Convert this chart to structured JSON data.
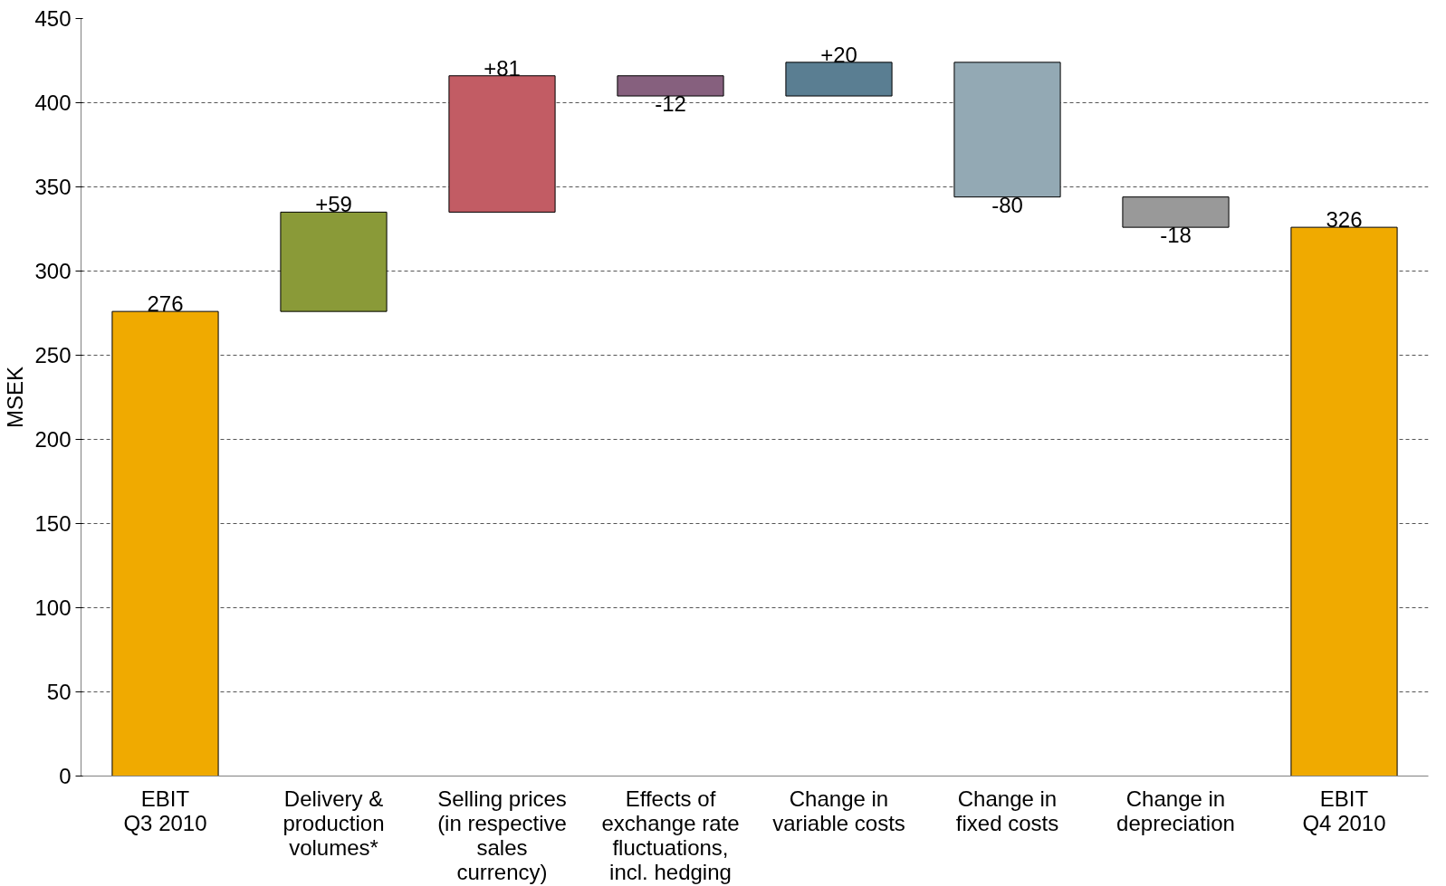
{
  "chart_data": {
    "type": "bar",
    "ylabel": "MSEK",
    "categories": [
      "EBIT\nQ3 2010",
      "Delivery &\nproduction\nvolumes*",
      "Selling prices\n(in respective\nsales\ncurrency)",
      "Effects of\nexchange rate\nfluctuations,\nincl. hedging",
      "Change in\nvariable costs",
      "Change in\nfixed costs",
      "Change in\ndepreciation",
      "EBIT\nQ4 2010"
    ],
    "values": [
      276,
      59,
      81,
      -12,
      20,
      -80,
      -18,
      326
    ],
    "base": [
      0,
      276,
      335,
      416,
      404,
      424,
      344,
      0
    ],
    "colors": [
      "#f0aa00",
      "#8a9a38",
      "#c25c64",
      "#86607e",
      "#5a7e92",
      "#93a9b4",
      "#999999",
      "#f0aa00"
    ],
    "value_labels": [
      "276",
      "+59",
      "+81",
      "-12",
      "+20",
      "-80",
      "-18",
      "326"
    ],
    "ylim": [
      0,
      450
    ],
    "yticks": [
      0,
      50,
      100,
      150,
      200,
      250,
      300,
      350,
      400,
      450
    ],
    "grid": "y"
  }
}
